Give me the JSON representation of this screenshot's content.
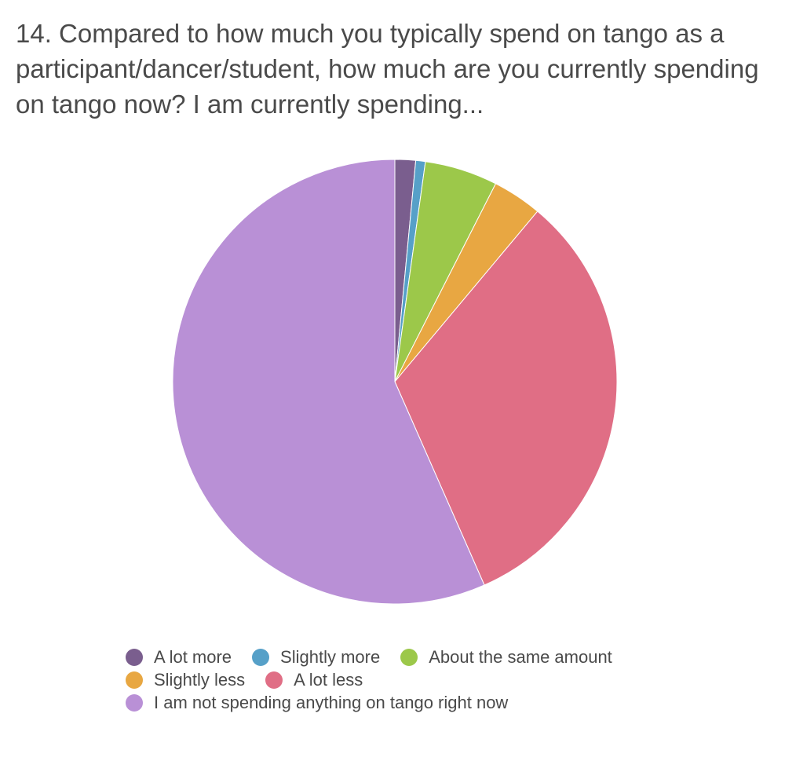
{
  "chart_data": {
    "type": "pie",
    "title": "14. Compared to how much you typically spend on tango as a participant/dancer/student, how much are you currently spending on tango now?  I am currently spending...",
    "categories": [
      "A lot more",
      "Slightly more",
      "About the same amount",
      "Slightly less",
      "A lot less",
      "I am not spending anything on tango right now"
    ],
    "values": [
      1.5,
      0.7,
      5.3,
      3.6,
      32.3,
      56.6
    ],
    "colors": [
      "#7a5e8e",
      "#56a0c8",
      "#9cc84a",
      "#e8a742",
      "#e06e85",
      "#b990d6"
    ],
    "legend_position": "bottom"
  },
  "legend": {
    "rows": [
      [
        0,
        1,
        2
      ],
      [
        3,
        4
      ],
      [
        5
      ]
    ]
  }
}
